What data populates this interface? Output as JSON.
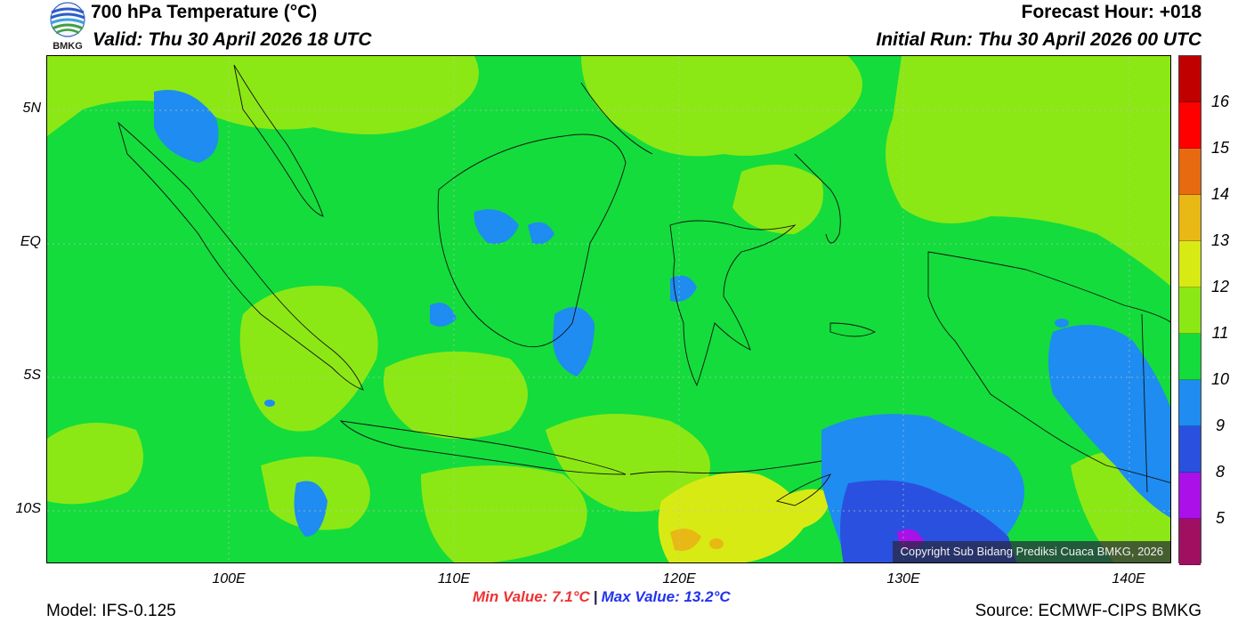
{
  "header": {
    "title": "700 hPa Temperature (°C)",
    "valid": "Valid: Thu 30 April 2026 18 UTC",
    "forecast_hour": "Forecast Hour: +018",
    "initial_run": "Initial Run: Thu 30 April 2026 00 UTC"
  },
  "logo": {
    "text": "BMKG"
  },
  "map": {
    "copyright": "Copyright Sub Bidang Prediksi Cuaca BMKG, 2026",
    "lat_labels": [
      "5N",
      "EQ",
      "5S",
      "10S"
    ],
    "lon_labels": [
      "100E",
      "110E",
      "120E",
      "130E",
      "140E"
    ]
  },
  "colorbar": {
    "labels": [
      "16",
      "15",
      "14",
      "13",
      "12",
      "11",
      "10",
      "9",
      "8",
      "5"
    ],
    "colors": [
      "#c00000",
      "#ff0000",
      "#e86a10",
      "#e8b814",
      "#d8ea14",
      "#8ce814",
      "#14dc3c",
      "#1e8cf0",
      "#2a50e0",
      "#aa10e8",
      "#a01060"
    ]
  },
  "stats": {
    "min": "Min Value: 7.1°C",
    "separator": "|",
    "max": "Max Value: 13.2°C"
  },
  "footer": {
    "model": "Model: IFS-0.125",
    "source": "Source: ECMWF-CIPS BMKG"
  }
}
